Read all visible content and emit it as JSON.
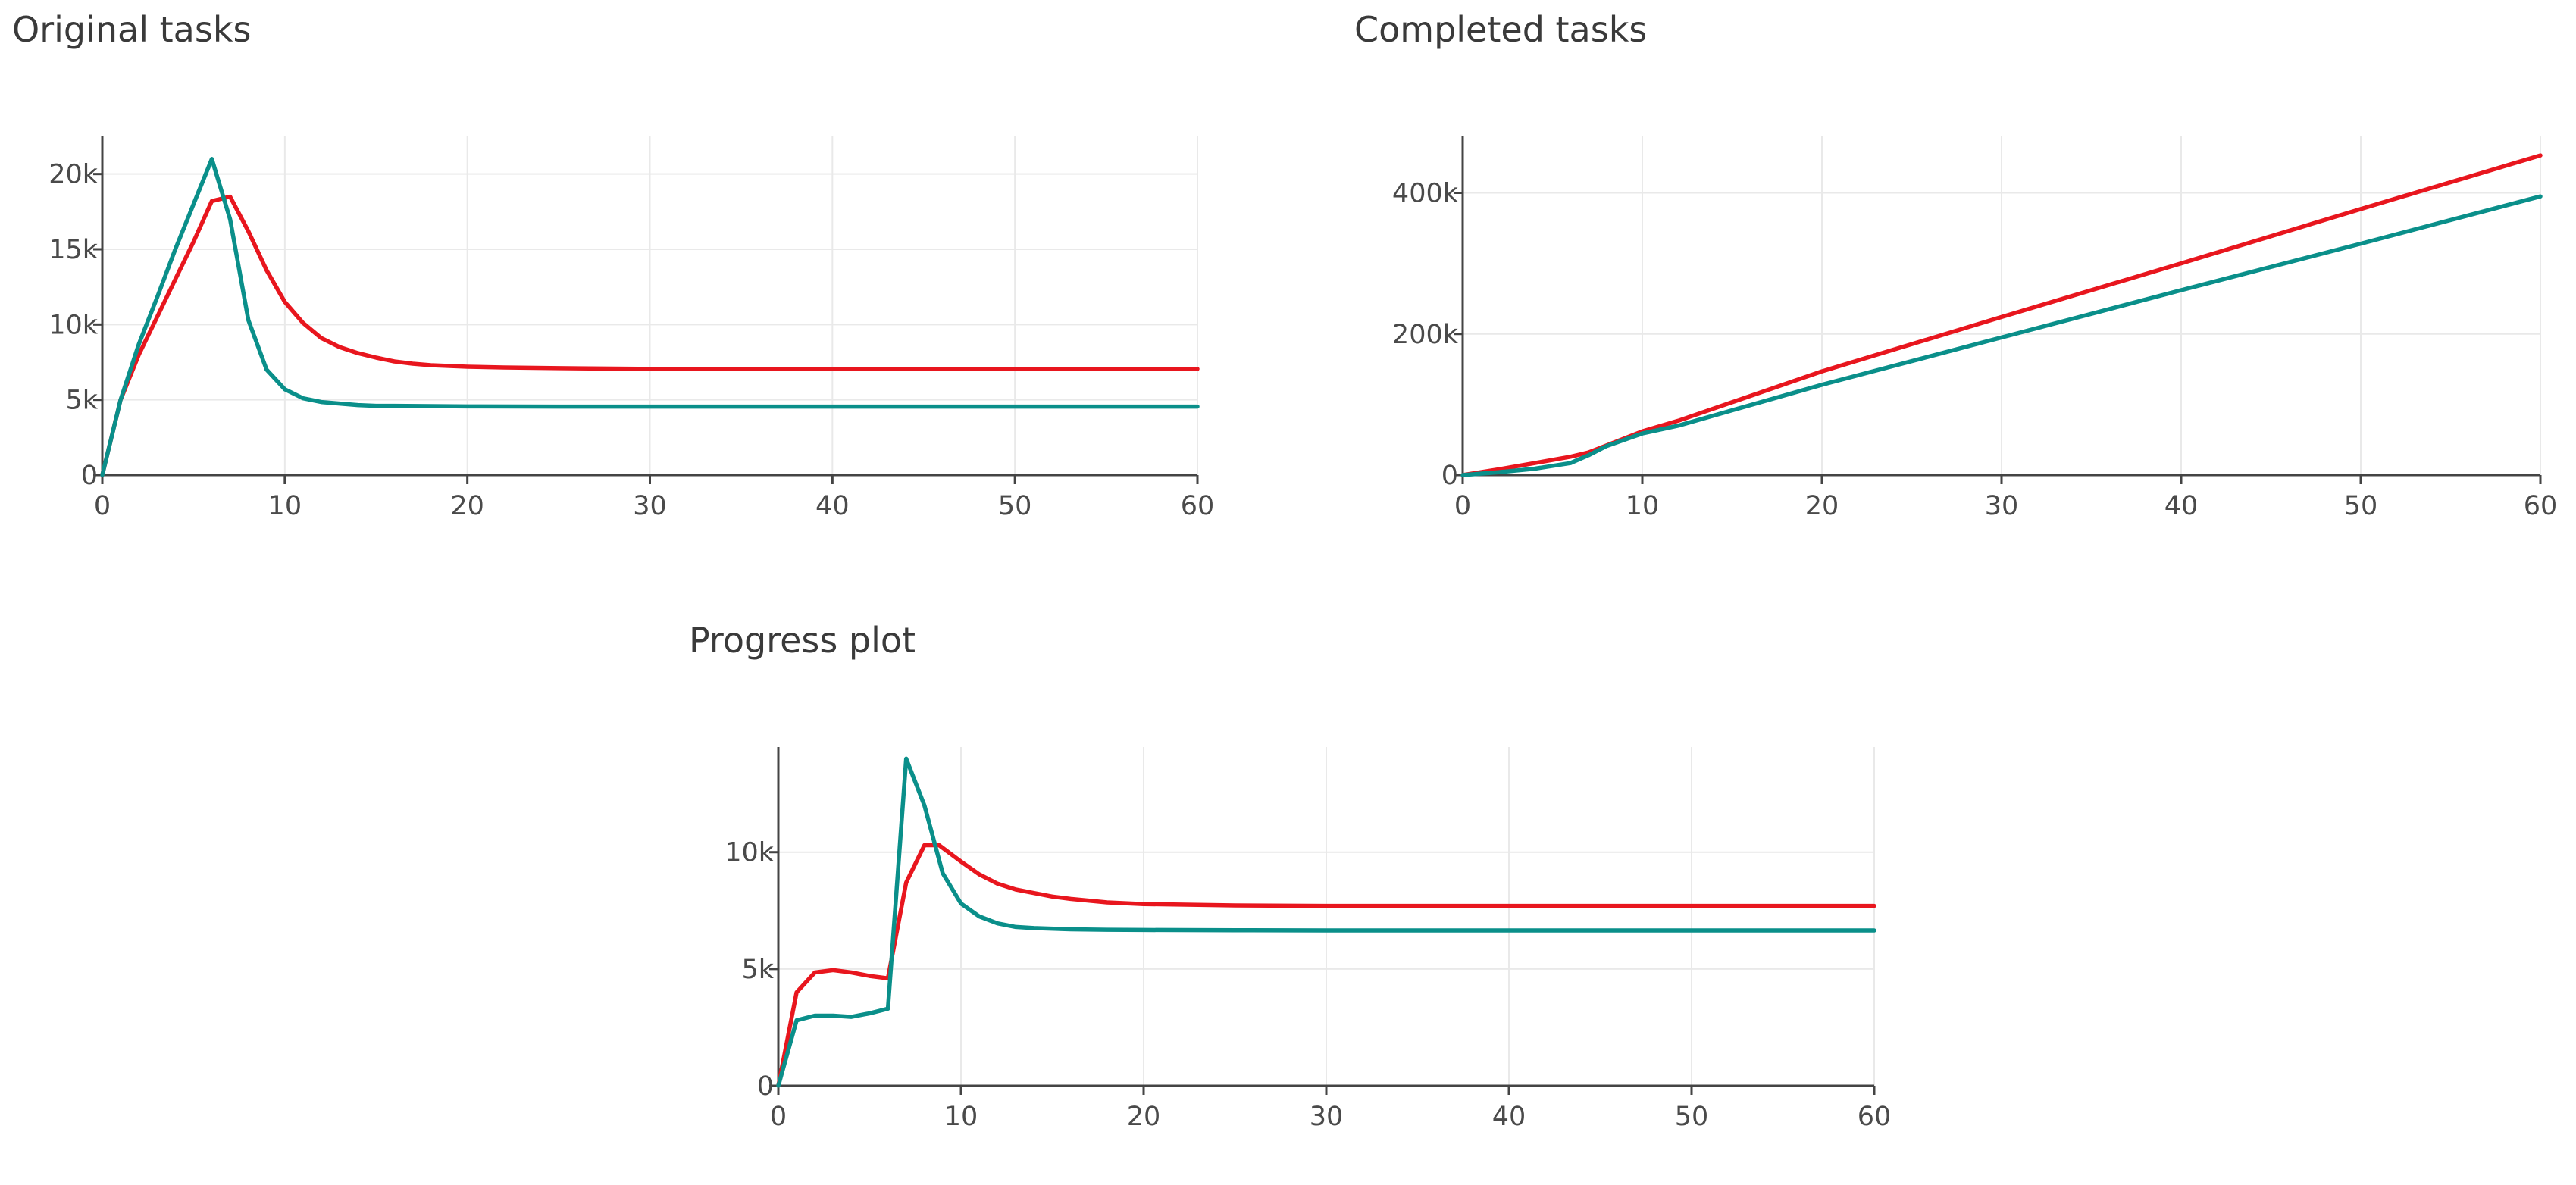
{
  "colors": {
    "series_red": "#e8161e",
    "series_teal": "#0a8f8a"
  },
  "chart_data": [
    {
      "id": "original",
      "type": "line",
      "title": "Original tasks",
      "xlabel": "",
      "ylabel": "",
      "xlim": [
        0,
        60
      ],
      "ylim": [
        0,
        22500
      ],
      "xticks": [
        0,
        10,
        20,
        30,
        40,
        50,
        60
      ],
      "xtick_labels": [
        "0",
        "10",
        "20",
        "30",
        "40",
        "50",
        "60"
      ],
      "yticks": [
        0,
        5000,
        10000,
        15000,
        20000
      ],
      "ytick_labels": [
        "0",
        "5k",
        "10k",
        "15k",
        "20k"
      ],
      "grid": true,
      "legend": "none",
      "series": [
        {
          "color": "#e8161e",
          "x": [
            0,
            1,
            2,
            3,
            4,
            5,
            6,
            7,
            8,
            9,
            10,
            11,
            12,
            13,
            14,
            15,
            16,
            17,
            18,
            19,
            20,
            22,
            25,
            30,
            40,
            50,
            60
          ],
          "y": [
            0,
            5000,
            8000,
            10500,
            13000,
            15500,
            18200,
            18500,
            16200,
            13600,
            11500,
            10100,
            9100,
            8500,
            8100,
            7800,
            7550,
            7400,
            7300,
            7250,
            7200,
            7150,
            7100,
            7050,
            7050,
            7050,
            7050
          ]
        },
        {
          "color": "#0a8f8a",
          "x": [
            0,
            1,
            2,
            3,
            4,
            5,
            6,
            7,
            8,
            9,
            10,
            11,
            12,
            13,
            14,
            15,
            16,
            18,
            20,
            25,
            30,
            40,
            50,
            60
          ],
          "y": [
            0,
            5000,
            8700,
            11800,
            15000,
            18000,
            21000,
            17000,
            10300,
            7000,
            5700,
            5100,
            4850,
            4750,
            4650,
            4600,
            4600,
            4580,
            4560,
            4550,
            4550,
            4550,
            4550,
            4550
          ]
        }
      ]
    },
    {
      "id": "completed",
      "type": "line",
      "title": "Completed tasks",
      "xlabel": "",
      "ylabel": "",
      "xlim": [
        0,
        60
      ],
      "ylim": [
        0,
        480000
      ],
      "xticks": [
        0,
        10,
        20,
        30,
        40,
        50,
        60
      ],
      "xtick_labels": [
        "0",
        "10",
        "20",
        "30",
        "40",
        "50",
        "60"
      ],
      "yticks": [
        0,
        200000,
        400000
      ],
      "ytick_labels": [
        "0",
        "200k",
        "400k"
      ],
      "grid": true,
      "legend": "none",
      "series": [
        {
          "color": "#e8161e",
          "x": [
            0,
            2,
            4,
            6,
            7,
            8,
            10,
            12,
            20,
            30,
            40,
            50,
            60
          ],
          "y": [
            0,
            8000,
            17000,
            26000,
            32000,
            42000,
            62000,
            77000,
            147000,
            224000,
            300000,
            377000,
            453000
          ]
        },
        {
          "color": "#0a8f8a",
          "x": [
            0,
            2,
            4,
            6,
            7,
            8,
            10,
            12,
            20,
            30,
            40,
            50,
            60
          ],
          "y": [
            0,
            4000,
            9000,
            17000,
            28000,
            41000,
            59000,
            70000,
            128000,
            195000,
            262000,
            328000,
            395000
          ]
        }
      ]
    },
    {
      "id": "progress",
      "type": "line",
      "title": "Progress plot",
      "xlabel": "",
      "ylabel": "",
      "xlim": [
        0,
        60
      ],
      "ylim": [
        0,
        14500
      ],
      "xticks": [
        0,
        10,
        20,
        30,
        40,
        50,
        60
      ],
      "xtick_labels": [
        "0",
        "10",
        "20",
        "30",
        "40",
        "50",
        "60"
      ],
      "yticks": [
        0,
        5000,
        10000
      ],
      "ytick_labels": [
        "0",
        "5k",
        "10k"
      ],
      "grid": true,
      "legend": "none",
      "series": [
        {
          "color": "#e8161e",
          "x": [
            0,
            1,
            2,
            3,
            4,
            5,
            6,
            7,
            8,
            8.8,
            10,
            11,
            12,
            13,
            14,
            15,
            16,
            18,
            20,
            25,
            30,
            40,
            50,
            60
          ],
          "y": [
            0,
            4000,
            4850,
            4950,
            4850,
            4700,
            4600,
            8700,
            10300,
            10300,
            9600,
            9050,
            8650,
            8400,
            8250,
            8100,
            8000,
            7850,
            7780,
            7720,
            7700,
            7700,
            7700,
            7700
          ]
        },
        {
          "color": "#0a8f8a",
          "x": [
            0,
            1,
            2,
            3,
            4,
            5,
            6,
            7,
            8,
            9,
            10,
            11,
            12,
            13,
            14,
            16,
            18,
            20,
            25,
            30,
            40,
            50,
            60
          ],
          "y": [
            0,
            2800,
            3000,
            3000,
            2950,
            3100,
            3300,
            14000,
            12000,
            9100,
            7800,
            7250,
            6950,
            6800,
            6750,
            6700,
            6680,
            6670,
            6660,
            6650,
            6650,
            6650,
            6650
          ]
        }
      ]
    }
  ]
}
